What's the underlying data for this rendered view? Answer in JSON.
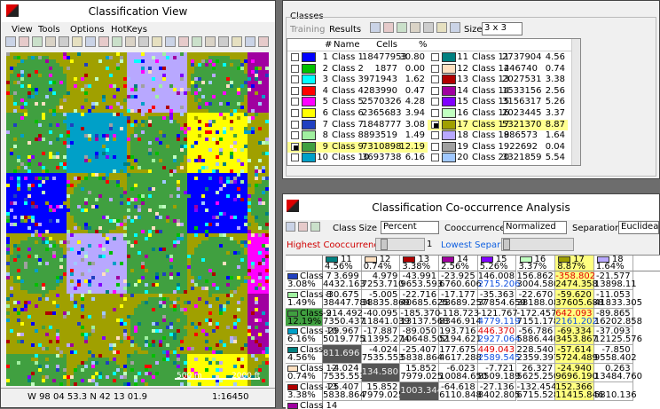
{
  "view": {
    "title": "Classification View",
    "menu": [
      "View",
      "Tools",
      "Options",
      "HotKeys"
    ],
    "scale_m": "500 m",
    "scale_ft": "2000 ft",
    "coords": "W 98 04 53.3  N 42 13 01.9",
    "scale": "1:16450"
  },
  "classes": {
    "title": "Classes",
    "training": "Training",
    "results": "Results",
    "size_label": "Size",
    "size": "3 x 3",
    "headers": [
      "#",
      "Name",
      "Cells",
      "%"
    ],
    "rows": [
      {
        "num": 1,
        "name": "Class 1",
        "cells": 18477953,
        "pct": "30.80",
        "color": "#0000ff"
      },
      {
        "num": 2,
        "name": "Class 2",
        "cells": 1877,
        "pct": "0.00",
        "color": "#00c000"
      },
      {
        "num": 3,
        "name": "Class 3",
        "cells": 971943,
        "pct": "1.62",
        "color": "#00ffff"
      },
      {
        "num": 4,
        "name": "Class 4",
        "cells": 283990,
        "pct": "0.47",
        "color": "#ff0000"
      },
      {
        "num": 5,
        "name": "Class 5",
        "cells": 2570326,
        "pct": "4.28",
        "color": "#ff00ff"
      },
      {
        "num": 6,
        "name": "Class 6",
        "cells": 2365683,
        "pct": "3.94",
        "color": "#ffff00"
      },
      {
        "num": 7,
        "name": "Class 7",
        "cells": 1848777,
        "pct": "3.08",
        "color": "#2040c0"
      },
      {
        "num": 8,
        "name": "Class 8",
        "cells": 893519,
        "pct": "1.49",
        "color": "#a0f0a0"
      },
      {
        "num": 9,
        "name": "Class 9",
        "cells": 7310898,
        "pct": "12.19",
        "color": "#40a040"
      },
      {
        "num": 10,
        "name": "Class 10",
        "cells": 3693738,
        "pct": "6.16",
        "color": "#00a0c8"
      },
      {
        "num": 11,
        "name": "Class 11",
        "cells": 2737904,
        "pct": "4.56",
        "color": "#008080"
      },
      {
        "num": 12,
        "name": "Class 12",
        "cells": 446740,
        "pct": "0.74",
        "color": "#ffe0c0"
      },
      {
        "num": 13,
        "name": "Class 13",
        "cells": 2027531,
        "pct": "3.38",
        "color": "#b00000"
      },
      {
        "num": 14,
        "name": "Class 14",
        "cells": 1533156,
        "pct": "2.56",
        "color": "#a000a0"
      },
      {
        "num": 15,
        "name": "Class 15",
        "cells": 3156317,
        "pct": "5.26",
        "color": "#8000ff"
      },
      {
        "num": 16,
        "name": "Class 16",
        "cells": 2023445,
        "pct": "3.37",
        "color": "#c0ffc0"
      },
      {
        "num": 17,
        "name": "Class 17",
        "cells": 5321370,
        "pct": "8.87",
        "color": "#a0a000"
      },
      {
        "num": 18,
        "name": "Class 18",
        "cells": 986573,
        "pct": "1.64",
        "color": "#b8a8ff"
      },
      {
        "num": 19,
        "name": "Class 19",
        "cells": 22692,
        "pct": "0.04",
        "color": "#a0a0a0"
      },
      {
        "num": 20,
        "name": "Class 20",
        "cells": 3321859,
        "pct": "5.54",
        "color": "#a0c8ff"
      }
    ]
  },
  "cooc": {
    "title": "Classification Co-occurrence Analysis",
    "class_size_label": "Class Size",
    "class_size": "Percent",
    "cooc_label": "Cooccurrence",
    "cooc": "Normalized",
    "sep_label": "Separation",
    "sep": "Euclidean",
    "highest": "Highest Cooccurrence",
    "index": "1",
    "lowest": "Lowest Separation",
    "columns": [
      {
        "num": "11",
        "pct": "4.56%"
      },
      {
        "num": "12",
        "pct": "0.74%"
      },
      {
        "num": "13",
        "pct": "3.38%"
      },
      {
        "num": "14",
        "pct": "2.56%"
      },
      {
        "num": "15",
        "pct": "5.26%"
      },
      {
        "num": "16",
        "pct": "3.37%"
      },
      {
        "num": "17",
        "pct": "8.87%"
      },
      {
        "num": "18",
        "pct": "1.64%"
      }
    ],
    "rows": [
      {
        "name": "Class 7",
        "pct": "3.08%",
        "cells": [
          [
            "3.699",
            "4432.163"
          ],
          [
            "4.979",
            "7253.710"
          ],
          [
            "-43.991",
            "9653.593"
          ],
          [
            "-23.925",
            "6760.606"
          ],
          [
            "146.008",
            "2715.206"
          ],
          [
            "156.862",
            "3004.580"
          ],
          [
            "-358.802",
            "2474.358"
          ],
          [
            "-21.577",
            "13898.11"
          ]
        ]
      },
      {
        "name": "Class 8",
        "pct": "1.49%",
        "cells": [
          [
            "-30.675",
            "38447.784"
          ],
          [
            "-5.005",
            "38835.869"
          ],
          [
            "-22.716",
            "40685.625"
          ],
          [
            "-17.177",
            "38689.257"
          ],
          [
            "-35.363",
            "37854.659"
          ],
          [
            "-22.670",
            "38188.086"
          ],
          [
            "-59.620",
            "37605.688"
          ],
          [
            "-11.053",
            "41833.305"
          ]
        ]
      },
      {
        "name": "Class 9",
        "pct": "12.19%",
        "cells": [
          [
            "-214.492",
            "7350.437"
          ],
          [
            "-40.095",
            "11841.039"
          ],
          [
            "-185.370",
            "13137.568"
          ],
          [
            "-118.723",
            "8346.914"
          ],
          [
            "-121.767",
            "4779.119"
          ],
          [
            "-172.457",
            "7151.178"
          ],
          [
            "642.093",
            "2161.202"
          ],
          [
            "-89.865",
            "16202.858"
          ]
        ]
      },
      {
        "name": "Class 10",
        "pct": "6.16%",
        "cells": [
          [
            "-29.967",
            "5019.775"
          ],
          [
            "-17.887",
            "11395.274"
          ],
          [
            "-89.050",
            "10648.502"
          ],
          [
            "193.716",
            "5194.621"
          ],
          [
            "446.370",
            "2927.064"
          ],
          [
            "-56.786",
            "5886.440"
          ],
          [
            "-69.334",
            "3453.867"
          ],
          [
            "-37.093",
            "12125.576"
          ]
        ]
      },
      {
        "name": "Class 11",
        "pct": "4.56%",
        "cells": [
          [
            "811.696"
          ],
          [
            "-4.024",
            "7535.553"
          ],
          [
            "-25.407",
            "5838.864"
          ],
          [
            "177.675",
            "4617.288"
          ],
          [
            "449.043",
            "2589.545"
          ],
          [
            "228.540",
            "2359.397"
          ],
          [
            "-57.614",
            "5724.489"
          ],
          [
            "-7.850",
            "9558.402"
          ]
        ]
      },
      {
        "name": "Class 12",
        "pct": "0.74%",
        "cells": [
          [
            "-4.024",
            "7535.553"
          ],
          [
            "134.580"
          ],
          [
            "15.852",
            "7979.025"
          ],
          [
            "-6.023",
            "10084.650"
          ],
          [
            "-7.721",
            "8509.189"
          ],
          [
            "26.327",
            "5625.250"
          ],
          [
            "-24.940",
            "9696.190"
          ],
          [
            "0.263",
            "13484.760"
          ]
        ]
      },
      {
        "name": "Class 13",
        "pct": "3.38%",
        "cells": [
          [
            "-25.407",
            "5838.864"
          ],
          [
            "15.852",
            "7979.025"
          ],
          [
            "1003.344"
          ],
          [
            "-64.618",
            "6110.848"
          ],
          [
            "-27.136",
            "8402.805"
          ],
          [
            "-132.454",
            "6715.528"
          ],
          [
            "152.366",
            "11415.846"
          ],
          [
            null,
            "5810.136"
          ]
        ]
      },
      {
        "name": "Class 14"
      }
    ]
  }
}
